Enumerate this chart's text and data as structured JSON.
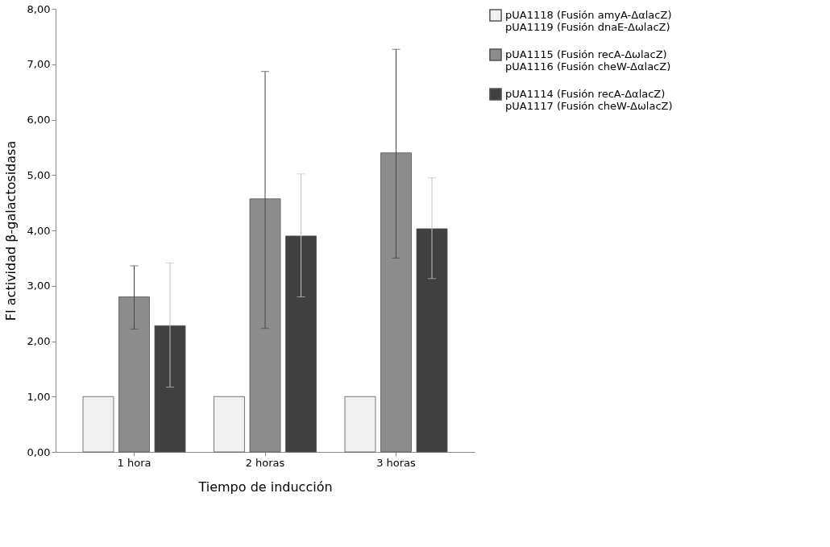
{
  "chart_data": {
    "type": "bar",
    "xlabel": "Tiempo de inducción",
    "ylabel": "FI actividad β-galactosidasa",
    "categories": [
      "1 hora",
      "2 horas",
      "3 horas"
    ],
    "series": [
      {
        "name": "pUA1118 (Fusión amyA-ΔαlacZ)\npUA1119 (Fusión dnaE-ΔωlacZ)",
        "color": "#f0f0f0",
        "values": [
          1.0,
          1.0,
          1.0
        ],
        "errors": [
          null,
          null,
          null
        ]
      },
      {
        "name": "pUA1115 (Fusión recA-ΔωlacZ)\npUA1116 (Fusión cheW-ΔαlacZ)",
        "color": "#8c8c8c",
        "values": [
          2.8,
          4.57,
          5.4
        ],
        "errors": [
          [
            2.22,
            3.36
          ],
          [
            2.23,
            6.87
          ],
          [
            3.5,
            7.27
          ]
        ]
      },
      {
        "name": "pUA1114 (Fusión recA-ΔαlacZ)\npUA1117 (Fusión cheW-ΔωlacZ)",
        "color": "#404040",
        "values": [
          2.28,
          3.9,
          4.03
        ],
        "errors": [
          [
            1.17,
            3.41
          ],
          [
            2.8,
            5.02
          ],
          [
            3.13,
            4.95
          ]
        ]
      }
    ],
    "ylim": [
      0,
      8
    ],
    "yticks": [
      {
        "value": 0,
        "label": "0,00"
      },
      {
        "value": 1,
        "label": "1,00"
      },
      {
        "value": 2,
        "label": "2,00"
      },
      {
        "value": 3,
        "label": "3,00"
      },
      {
        "value": 4,
        "label": "4,00"
      },
      {
        "value": 5,
        "label": "5,00"
      },
      {
        "value": 6,
        "label": "6,00"
      },
      {
        "value": 7,
        "label": "7,00"
      },
      {
        "value": 8,
        "label": "8,00"
      }
    ],
    "grid": false,
    "legend": "right"
  }
}
